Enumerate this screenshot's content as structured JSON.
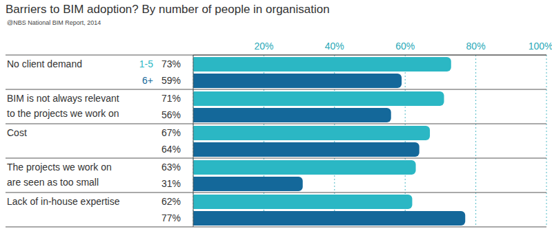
{
  "chart_data": {
    "type": "bar",
    "orientation": "horizontal",
    "title": "Barriers to BIM adoption? By number of people in organisation",
    "subtitle": "@NBS National BIM Report, 2014",
    "categories": [
      "No client demand",
      "BIM is not always relevant to the projects we work on",
      "Cost",
      "The projects we work on are seen as too small",
      "Lack of in-house expertise"
    ],
    "series": [
      {
        "name": "1-5",
        "color": "#2bb7c4",
        "values": [
          73,
          71,
          67,
          63,
          62
        ],
        "value_labels": [
          "73%",
          "71%",
          "67%",
          "63%",
          "62%"
        ]
      },
      {
        "name": "6+",
        "color": "#14689a",
        "values": [
          59,
          56,
          64,
          31,
          77
        ],
        "value_labels": [
          "59%",
          "56%",
          "64%",
          "31%",
          "77%"
        ]
      }
    ],
    "xlim": [
      0,
      100
    ],
    "xticks": [
      {
        "value": 20,
        "label": "20%"
      },
      {
        "value": 40,
        "label": "40%"
      },
      {
        "value": 60,
        "label": "60%"
      },
      {
        "value": 80,
        "label": "80%"
      },
      {
        "value": 100,
        "label": "100%"
      }
    ],
    "grid": true
  }
}
